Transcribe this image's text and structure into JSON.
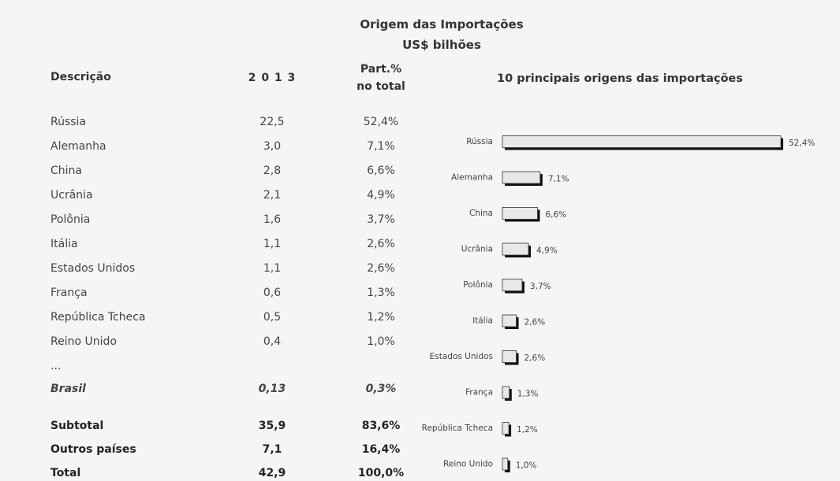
{
  "header": {
    "title": "Origem das Importações",
    "subtitle": "US$ bilhões"
  },
  "table": {
    "columns": [
      "Descrição",
      "2 0 1 3",
      "Part.%",
      "no total"
    ],
    "rows": [
      [
        "Rússia",
        "22,5",
        "52,4%"
      ],
      [
        "Alemanha",
        "3,0",
        "7,1%"
      ],
      [
        "China",
        "2,8",
        "6,6%"
      ],
      [
        "Ucrânia",
        "2,1",
        "4,9%"
      ],
      [
        "Polônia",
        "1,6",
        "3,7%"
      ],
      [
        "Itália",
        "1,1",
        "2,6%"
      ],
      [
        "Estados Unidos",
        "1,1",
        "2,6%"
      ],
      [
        "França",
        "0,6",
        "1,3%"
      ],
      [
        "República Tcheca",
        "0,5",
        "1,2%"
      ],
      [
        "Reino Unido",
        "0,4",
        "1,0%"
      ]
    ],
    "ellipsis": "...",
    "brasil": [
      "Brasil",
      "0,13",
      "0,3%"
    ],
    "summary": [
      [
        "Subtotal",
        "35,9",
        "83,6%"
      ],
      [
        "Outros países",
        "7,1",
        "16,4%"
      ],
      [
        "Total",
        "42,9",
        "100,0%"
      ]
    ]
  },
  "chart_data": {
    "type": "bar",
    "orientation": "horizontal",
    "title": "10 principais origens das importações",
    "categories": [
      "Rússia",
      "Alemanha",
      "China",
      "Ucrânia",
      "Polônia",
      "Itália",
      "Estados Unidos",
      "França",
      "República Tcheca",
      "Reino Unido"
    ],
    "values": [
      52.4,
      7.1,
      6.6,
      4.9,
      3.7,
      2.6,
      2.6,
      1.3,
      1.2,
      1.0
    ],
    "value_labels": [
      "52,4%",
      "7,1%",
      "6,6%",
      "4,9%",
      "3,7%",
      "2,6%",
      "2,6%",
      "1,3%",
      "1,2%",
      "1,0%"
    ],
    "color": "#e8e8e8"
  }
}
